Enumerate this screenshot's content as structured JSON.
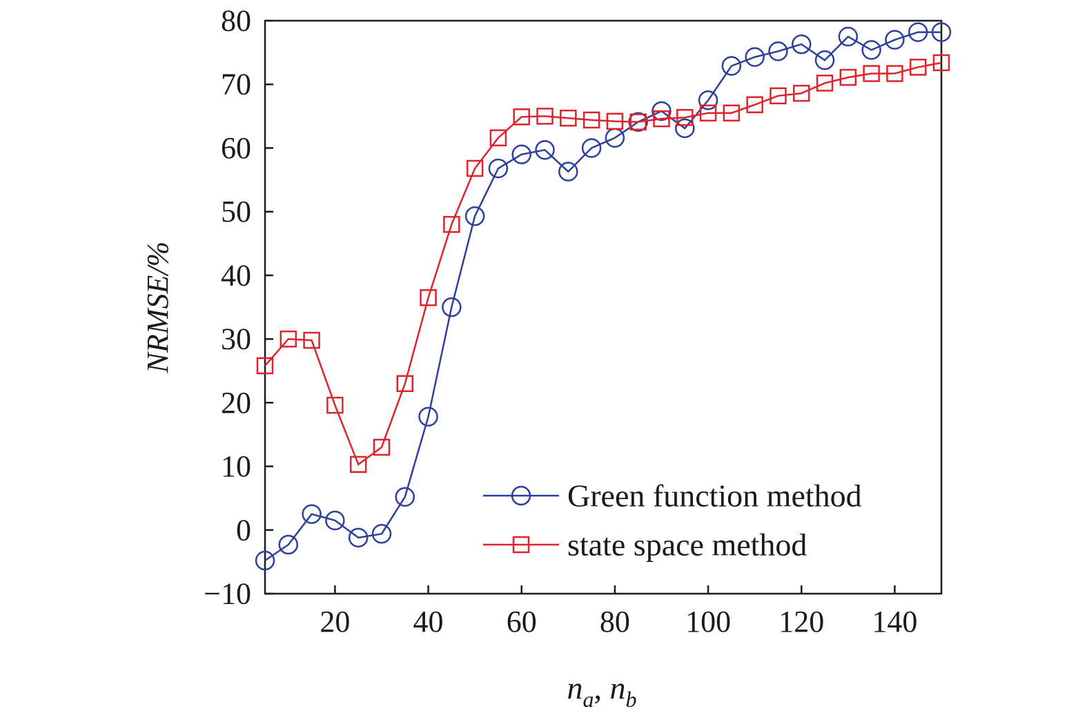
{
  "chart_data": {
    "type": "line",
    "title": "",
    "ylabel": "NRMSE/%",
    "xlabel": {
      "base1": "n",
      "sub1": "a",
      "sep": ", ",
      "base2": "n",
      "sub2": "b"
    },
    "xlim": [
      5,
      150
    ],
    "ylim": [
      -10,
      80
    ],
    "xticks": [
      20,
      40,
      60,
      80,
      100,
      120,
      140
    ],
    "xtick_labels": [
      "20",
      "40",
      "60",
      "80",
      "100",
      "120",
      "140"
    ],
    "yticks": [
      -10,
      0,
      10,
      20,
      30,
      40,
      50,
      60,
      70,
      80
    ],
    "ytick_labels": [
      "−10",
      "0",
      "10",
      "20",
      "30",
      "40",
      "50",
      "60",
      "70",
      "80"
    ],
    "grid": false,
    "legend_position": "bottom-right",
    "x": [
      5,
      10,
      15,
      20,
      25,
      30,
      35,
      40,
      45,
      50,
      55,
      60,
      65,
      70,
      75,
      80,
      85,
      90,
      95,
      100,
      105,
      110,
      115,
      120,
      125,
      130,
      135,
      140,
      145,
      150
    ],
    "series": [
      {
        "name": "Green function method",
        "color": "#2b3f9e",
        "marker": "circle",
        "values": [
          -4.8,
          -2.3,
          2.5,
          1.5,
          -1.2,
          -0.6,
          5.2,
          17.8,
          35.0,
          49.3,
          56.8,
          59.0,
          59.7,
          56.3,
          60.0,
          61.6,
          64.1,
          65.8,
          63.1,
          67.5,
          72.9,
          74.3,
          75.2,
          76.3,
          73.8,
          77.5,
          75.4,
          77.0,
          78.2,
          78.2
        ]
      },
      {
        "name": "state space method",
        "color": "#e0222b",
        "marker": "square",
        "values": [
          25.8,
          30.0,
          29.8,
          19.6,
          10.3,
          13.0,
          23.0,
          36.5,
          48.0,
          56.8,
          61.6,
          64.9,
          65.0,
          64.7,
          64.4,
          64.2,
          64.1,
          64.6,
          64.8,
          65.5,
          65.5,
          66.8,
          68.2,
          68.6,
          70.2,
          71.1,
          71.7,
          71.7,
          72.7,
          73.4
        ]
      }
    ]
  }
}
